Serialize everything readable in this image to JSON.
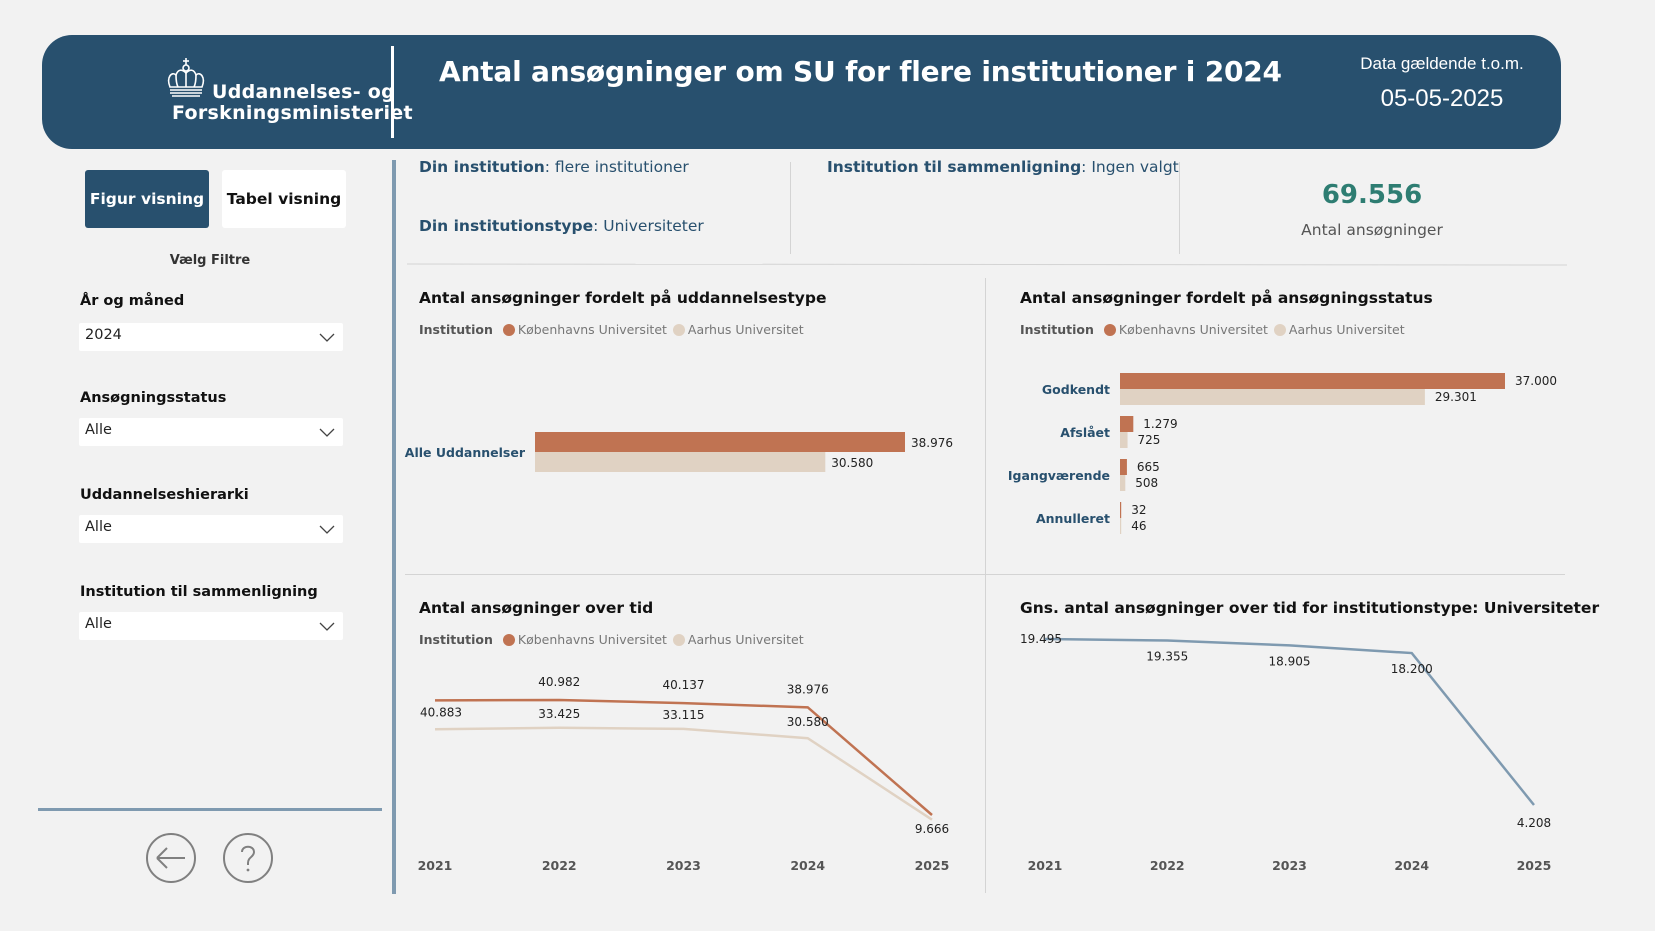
{
  "header": {
    "logo_line1": "Uddannelses- og",
    "logo_line2": "Forskningsministeriet",
    "title": "Antal ansøgninger om SU for flere institutioner i 2024",
    "date_label": "Data gældende t.o.m.",
    "date_value": "05-05-2025"
  },
  "sidebar": {
    "view_buttons": [
      {
        "label": "Figur visning",
        "active": true
      },
      {
        "label": "Tabel visning",
        "active": false
      }
    ],
    "filters_heading": "Vælg Filtre",
    "filters": [
      {
        "label": "År og måned",
        "value": "2024"
      },
      {
        "label": "Ansøgningsstatus",
        "value": "Alle"
      },
      {
        "label": "Uddannelseshierarki",
        "value": "Alle"
      },
      {
        "label": "Institution til sammenligning",
        "value": "Alle"
      }
    ],
    "back_icon": "arrow-left-circle-icon",
    "help_icon": "question-circle-icon"
  },
  "info": {
    "institution_label": "Din institution",
    "institution_value": ": flere institutioner",
    "type_label": "Din institutionstype",
    "type_value": ": Universiteter",
    "compare_label": "Institution til sammenligning",
    "compare_value": ": Ingen valgt"
  },
  "kpi": {
    "value": "69.556",
    "label": "Antal ansøgninger"
  },
  "colors": {
    "brand": "#28506e",
    "series_ku": "#c07352",
    "series_au": "#e0d2c3",
    "avg_line": "#7f9ab0",
    "kpi": "#2e7d72"
  },
  "legend": {
    "title": "Institution",
    "series": [
      "Københavns Universitet",
      "Aarhus Universitet"
    ]
  },
  "chart_data": [
    {
      "type": "bar",
      "orientation": "horizontal",
      "title": "Antal ansøgninger fordelt på uddannelsestype",
      "legend_title": "Institution",
      "categories": [
        "Alle Uddannelser"
      ],
      "series": [
        {
          "name": "Københavns Universitet",
          "values": [
            38976
          ],
          "labels": [
            "38.976"
          ]
        },
        {
          "name": "Aarhus Universitet",
          "values": [
            30580
          ],
          "labels": [
            "30.580"
          ]
        }
      ],
      "legend_position": "top-left"
    },
    {
      "type": "bar",
      "orientation": "horizontal",
      "title": "Antal ansøgninger fordelt på ansøgningsstatus",
      "legend_title": "Institution",
      "categories": [
        "Godkendt",
        "Afslået",
        "Igangværende",
        "Annulleret"
      ],
      "series": [
        {
          "name": "Københavns Universitet",
          "values": [
            37000,
            1279,
            665,
            32
          ],
          "labels": [
            "37.000",
            "1.279",
            "665",
            "32"
          ]
        },
        {
          "name": "Aarhus Universitet",
          "values": [
            29301,
            725,
            508,
            46
          ],
          "labels": [
            "29.301",
            "725",
            "508",
            "46"
          ]
        }
      ],
      "legend_position": "top-left"
    },
    {
      "type": "line",
      "title": "Antal ansøgninger over tid",
      "legend_title": "Institution",
      "x": [
        "2021",
        "2022",
        "2023",
        "2024",
        "2025"
      ],
      "series": [
        {
          "name": "Københavns Universitet",
          "values": [
            40883,
            40982,
            40137,
            38976,
            9666
          ],
          "labels": [
            "40.883",
            "40.982",
            "40.137",
            "38.976",
            "9.666"
          ]
        },
        {
          "name": "Aarhus Universitet",
          "values": [
            33000,
            33425,
            33115,
            30580,
            8400
          ],
          "labels": [
            "",
            "33.425",
            "33.115",
            "30.580",
            ""
          ]
        }
      ],
      "legend_position": "top-left",
      "grid": false
    },
    {
      "type": "line",
      "title": "Gns. antal ansøgninger over tid for institutionstype: Universiteter",
      "x": [
        "2021",
        "2022",
        "2023",
        "2024",
        "2025"
      ],
      "series": [
        {
          "name": "Universiteter",
          "values": [
            19495,
            19355,
            18905,
            18200,
            4208
          ],
          "labels": [
            "19.495",
            "19.355",
            "18.905",
            "18.200",
            "4.208"
          ]
        }
      ],
      "grid": false
    }
  ]
}
